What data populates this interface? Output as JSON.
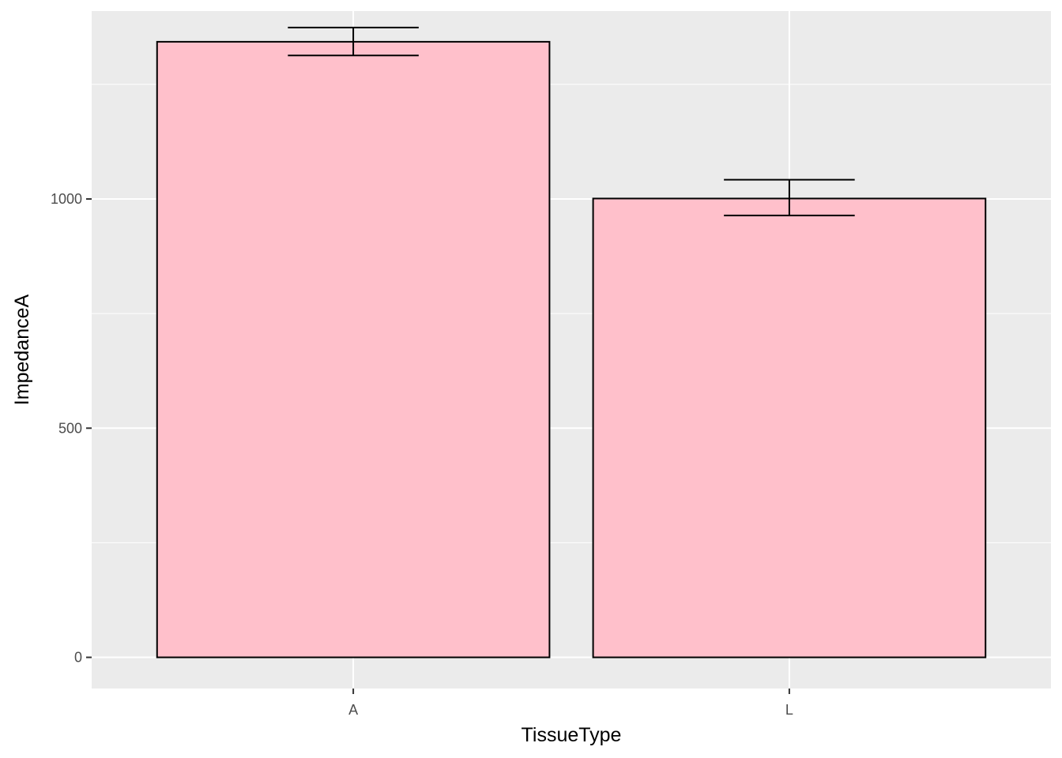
{
  "chart_data": {
    "type": "bar",
    "title": "",
    "xlabel": "TissueType",
    "ylabel": "ImpedanceA",
    "categories": [
      "A",
      "L"
    ],
    "values": [
      1343,
      1001
    ],
    "error_bars": [
      {
        "low": 1313,
        "high": 1374
      },
      {
        "low": 964,
        "high": 1042
      }
    ],
    "ylim": [
      -68,
      1410
    ],
    "y_ticks": [
      0,
      500,
      1000
    ],
    "y_tick_labels": [
      "0",
      "500",
      "1000"
    ],
    "grid": true,
    "bar_fill": "#FFC0CB",
    "bar_outline": "#000000",
    "panel_background": "#EBEBEB",
    "grid_color": "#FFFFFF"
  }
}
